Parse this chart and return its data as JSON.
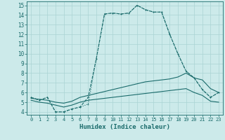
{
  "xlabel": "Humidex (Indice chaleur)",
  "xlim": [
    -0.5,
    23.5
  ],
  "ylim": [
    3.7,
    15.4
  ],
  "xticks": [
    0,
    1,
    2,
    3,
    4,
    5,
    6,
    7,
    8,
    9,
    10,
    11,
    12,
    13,
    14,
    15,
    16,
    17,
    18,
    19,
    20,
    21,
    22,
    23
  ],
  "yticks": [
    4,
    5,
    6,
    7,
    8,
    9,
    10,
    11,
    12,
    13,
    14,
    15
  ],
  "bg_color": "#cceaea",
  "grid_color": "#aad4d4",
  "line_color": "#1a6b6b",
  "curve_dotted_x": [
    0,
    1,
    2,
    3,
    4,
    5,
    6,
    7,
    8,
    9,
    10,
    11,
    12,
    13,
    14,
    15,
    16,
    17,
    18,
    19,
    20,
    21,
    22,
    23
  ],
  "curve_dotted_y": [
    5.5,
    5.2,
    5.5,
    4.0,
    4.0,
    4.3,
    4.5,
    4.8,
    9.5,
    14.1,
    14.2,
    14.1,
    14.2,
    15.0,
    14.55,
    14.3,
    14.3,
    12.0,
    10.0,
    8.2,
    7.5,
    6.3,
    5.5,
    6.0
  ],
  "curve_dashed_x": [
    0,
    1,
    2,
    3,
    4,
    5,
    6,
    7,
    8,
    9,
    10,
    11,
    12,
    13,
    14,
    15,
    16,
    17,
    18,
    19,
    20,
    21,
    22,
    23
  ],
  "curve_dashed_y": [
    5.5,
    5.2,
    5.5,
    4.0,
    4.0,
    4.3,
    4.5,
    5.5,
    9.5,
    14.1,
    14.2,
    14.1,
    14.2,
    15.0,
    14.55,
    14.3,
    14.3,
    12.0,
    10.0,
    8.2,
    7.5,
    6.3,
    5.5,
    6.0
  ],
  "curve_upper_x": [
    0,
    1,
    2,
    3,
    4,
    5,
    6,
    7,
    8,
    9,
    10,
    11,
    12,
    13,
    14,
    15,
    16,
    17,
    18,
    19,
    20,
    21,
    22,
    23
  ],
  "curve_upper_y": [
    5.4,
    5.3,
    5.2,
    5.0,
    4.9,
    5.1,
    5.5,
    5.7,
    5.9,
    6.1,
    6.3,
    6.5,
    6.7,
    6.9,
    7.1,
    7.2,
    7.3,
    7.4,
    7.6,
    8.0,
    7.5,
    7.3,
    6.4,
    6.0
  ],
  "curve_lower_x": [
    0,
    1,
    2,
    3,
    4,
    5,
    6,
    7,
    8,
    9,
    10,
    11,
    12,
    13,
    14,
    15,
    16,
    17,
    18,
    19,
    20,
    21,
    22,
    23
  ],
  "curve_lower_y": [
    5.2,
    5.0,
    4.9,
    4.7,
    4.5,
    4.7,
    5.0,
    5.2,
    5.3,
    5.4,
    5.5,
    5.6,
    5.7,
    5.8,
    5.9,
    6.0,
    6.1,
    6.2,
    6.3,
    6.4,
    6.0,
    5.7,
    5.1,
    5.0
  ]
}
